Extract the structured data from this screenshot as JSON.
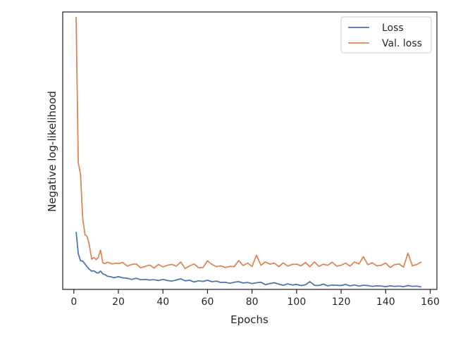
{
  "chart_data": {
    "type": "line",
    "title": "",
    "xlabel": "Epochs",
    "ylabel": "Negative log-likelihood",
    "xlim": [
      -5,
      163
    ],
    "ylim": [
      0.0,
      1.0
    ],
    "x_ticks": [
      0,
      20,
      40,
      60,
      80,
      100,
      120,
      140,
      160
    ],
    "x_tick_labels": [
      "0",
      "20",
      "40",
      "60",
      "80",
      "100",
      "120",
      "140",
      "160"
    ],
    "y_ticks_labeled": false,
    "grid": false,
    "legend_position": "top-right",
    "colors": {
      "Loss": "#4c72b0",
      "Val. loss": "#dd8452",
      "axes": "#262626"
    },
    "series": [
      {
        "name": "Loss",
        "x": [
          1,
          2,
          3,
          4,
          5,
          6,
          7,
          8,
          9,
          10,
          11,
          12,
          13,
          14,
          15,
          16,
          17,
          18,
          19,
          20,
          22,
          24,
          26,
          28,
          30,
          32,
          34,
          36,
          38,
          40,
          42,
          44,
          46,
          48,
          50,
          52,
          54,
          56,
          58,
          60,
          62,
          64,
          66,
          68,
          70,
          72,
          74,
          76,
          78,
          80,
          82,
          84,
          86,
          88,
          90,
          92,
          94,
          96,
          98,
          100,
          102,
          104,
          106,
          108,
          110,
          112,
          114,
          116,
          118,
          120,
          122,
          124,
          126,
          128,
          130,
          132,
          134,
          136,
          138,
          140,
          142,
          144,
          146,
          148,
          150,
          152,
          154,
          156
        ],
        "y": [
          0.207,
          0.129,
          0.103,
          0.102,
          0.092,
          0.081,
          0.072,
          0.066,
          0.067,
          0.061,
          0.059,
          0.066,
          0.056,
          0.053,
          0.048,
          0.046,
          0.045,
          0.042,
          0.044,
          0.046,
          0.042,
          0.04,
          0.036,
          0.04,
          0.035,
          0.036,
          0.034,
          0.035,
          0.032,
          0.036,
          0.032,
          0.03,
          0.034,
          0.038,
          0.031,
          0.033,
          0.027,
          0.031,
          0.029,
          0.033,
          0.028,
          0.03,
          0.025,
          0.026,
          0.022,
          0.026,
          0.028,
          0.023,
          0.025,
          0.021,
          0.024,
          0.026,
          0.017,
          0.021,
          0.024,
          0.019,
          0.015,
          0.02,
          0.016,
          0.018,
          0.014,
          0.017,
          0.028,
          0.015,
          0.014,
          0.019,
          0.013,
          0.016,
          0.015,
          0.014,
          0.018,
          0.013,
          0.016,
          0.012,
          0.015,
          0.014,
          0.011,
          0.013,
          0.012,
          0.01,
          0.013,
          0.011,
          0.012,
          0.01,
          0.014,
          0.011,
          0.012,
          0.009
        ]
      },
      {
        "name": "Val. loss",
        "x": [
          1,
          2,
          3,
          4,
          5,
          6,
          7,
          8,
          9,
          10,
          11,
          12,
          13,
          14,
          15,
          16,
          17,
          18,
          19,
          20,
          22,
          24,
          26,
          28,
          30,
          32,
          34,
          36,
          38,
          40,
          42,
          44,
          46,
          48,
          50,
          52,
          54,
          56,
          58,
          60,
          62,
          64,
          66,
          68,
          70,
          72,
          74,
          76,
          78,
          80,
          82,
          84,
          86,
          88,
          90,
          92,
          94,
          96,
          98,
          100,
          102,
          104,
          106,
          108,
          110,
          112,
          114,
          116,
          118,
          120,
          122,
          124,
          126,
          128,
          130,
          132,
          134,
          136,
          138,
          140,
          142,
          144,
          146,
          148,
          150,
          152,
          154,
          156
        ],
        "y": [
          0.982,
          0.456,
          0.415,
          0.255,
          0.198,
          0.19,
          0.158,
          0.109,
          0.115,
          0.107,
          0.116,
          0.142,
          0.096,
          0.093,
          0.098,
          0.096,
          0.092,
          0.093,
          0.095,
          0.093,
          0.097,
          0.084,
          0.09,
          0.092,
          0.078,
          0.083,
          0.088,
          0.077,
          0.09,
          0.081,
          0.087,
          0.09,
          0.084,
          0.099,
          0.075,
          0.085,
          0.092,
          0.078,
          0.079,
          0.103,
          0.09,
          0.082,
          0.085,
          0.079,
          0.083,
          0.082,
          0.104,
          0.086,
          0.095,
          0.083,
          0.123,
          0.087,
          0.099,
          0.091,
          0.095,
          0.082,
          0.096,
          0.084,
          0.09,
          0.091,
          0.085,
          0.097,
          0.082,
          0.099,
          0.083,
          0.091,
          0.087,
          0.098,
          0.084,
          0.087,
          0.095,
          0.084,
          0.099,
          0.092,
          0.118,
          0.089,
          0.096,
          0.085,
          0.087,
          0.095,
          0.079,
          0.089,
          0.092,
          0.08,
          0.131,
          0.085,
          0.09,
          0.099
        ]
      }
    ]
  }
}
